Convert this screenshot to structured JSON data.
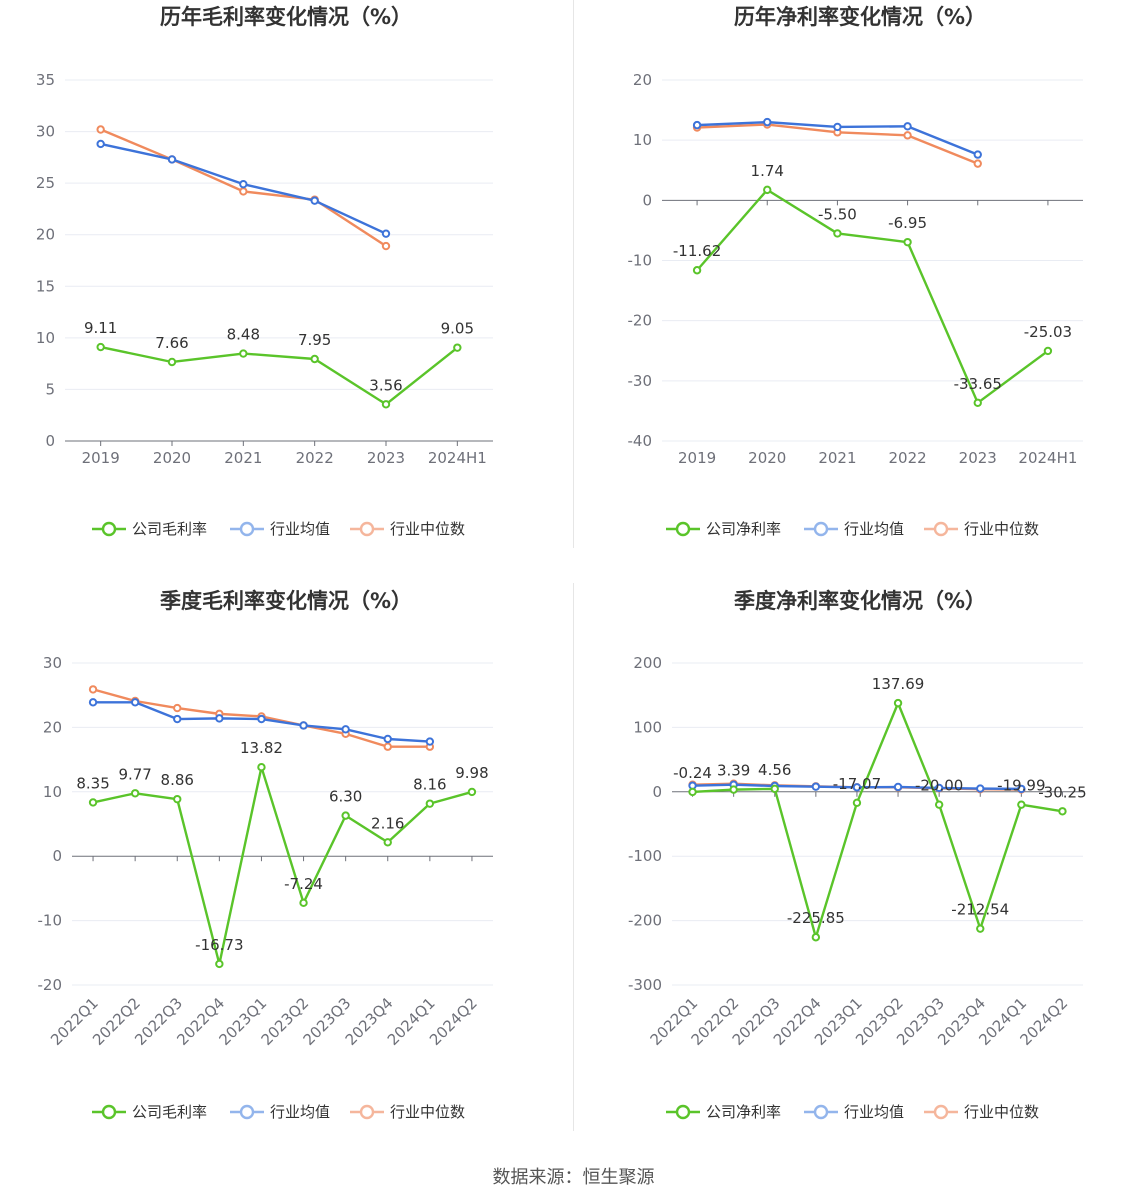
{
  "colors": {
    "company": "#5ac42a",
    "industry_avg": "#3d73d9",
    "industry_median": "#f08a5d",
    "legend_avg": "#93b5ec",
    "legend_median": "#f5b69c",
    "grid": "#e9ecf3",
    "axis": "#6e7079"
  },
  "source": "数据来源：恒生聚源",
  "chart_data": [
    {
      "type": "line",
      "title": "历年毛利率变化情况（%）",
      "categories": [
        "2019",
        "2020",
        "2021",
        "2022",
        "2023",
        "2024H1"
      ],
      "ylim": [
        0,
        35
      ],
      "yticks": [
        0,
        5,
        10,
        15,
        20,
        25,
        30,
        35
      ],
      "rotate_labels": false,
      "label_series": 0,
      "series": [
        {
          "name": "公司毛利率",
          "color_key": "company",
          "values": [
            9.11,
            7.66,
            8.48,
            7.95,
            3.56,
            9.05
          ],
          "labels": [
            "9.11",
            "7.66",
            "8.48",
            "7.95",
            "3.56",
            "9.05"
          ]
        },
        {
          "name": "行业均值",
          "color_key": "industry_avg",
          "values": [
            28.8,
            27.3,
            24.9,
            23.3,
            20.1,
            null
          ]
        },
        {
          "name": "行业中位数",
          "color_key": "industry_median",
          "values": [
            30.2,
            27.3,
            24.2,
            23.4,
            18.9,
            null
          ]
        }
      ]
    },
    {
      "type": "line",
      "title": "历年净利率变化情况（%）",
      "categories": [
        "2019",
        "2020",
        "2021",
        "2022",
        "2023",
        "2024H1"
      ],
      "ylim": [
        -40,
        20
      ],
      "yticks": [
        -40,
        -30,
        -20,
        -10,
        0,
        10,
        20
      ],
      "rotate_labels": false,
      "label_series": 0,
      "series": [
        {
          "name": "公司净利率",
          "color_key": "company",
          "values": [
            -11.62,
            1.74,
            -5.5,
            -6.95,
            -33.65,
            -25.03
          ],
          "labels": [
            "-11.62",
            "1.74",
            "-5.50",
            "-6.95",
            "-33.65",
            "-25.03"
          ]
        },
        {
          "name": "行业均值",
          "color_key": "industry_avg",
          "values": [
            12.5,
            13.0,
            12.2,
            12.3,
            7.6,
            null
          ]
        },
        {
          "name": "行业中位数",
          "color_key": "industry_median",
          "values": [
            12.1,
            12.6,
            11.3,
            10.8,
            6.1,
            null
          ]
        }
      ]
    },
    {
      "type": "line",
      "title": "季度毛利率变化情况（%）",
      "categories": [
        "2022Q1",
        "2022Q2",
        "2022Q3",
        "2022Q4",
        "2023Q1",
        "2023Q2",
        "2023Q3",
        "2023Q4",
        "2024Q1",
        "2024Q2"
      ],
      "ylim": [
        -20,
        30
      ],
      "yticks": [
        -20,
        -10,
        0,
        10,
        20,
        30
      ],
      "rotate_labels": true,
      "label_series": 0,
      "series": [
        {
          "name": "公司毛利率",
          "color_key": "company",
          "values": [
            8.35,
            9.77,
            8.86,
            -16.73,
            13.82,
            -7.24,
            6.3,
            2.16,
            8.16,
            9.98
          ],
          "labels": [
            "8.35",
            "9.77",
            "8.86",
            "-16.73",
            "13.82",
            "-7.24",
            "6.30",
            "2.16",
            "8.16",
            "9.98"
          ]
        },
        {
          "name": "行业均值",
          "color_key": "industry_avg",
          "values": [
            23.9,
            23.9,
            21.3,
            21.4,
            21.3,
            20.3,
            19.7,
            18.2,
            17.8,
            null
          ]
        },
        {
          "name": "行业中位数",
          "color_key": "industry_median",
          "values": [
            25.9,
            24.1,
            23.0,
            22.1,
            21.7,
            20.3,
            19.0,
            17.0,
            17.0,
            null
          ]
        }
      ]
    },
    {
      "type": "line",
      "title": "季度净利率变化情况（%）",
      "categories": [
        "2022Q1",
        "2022Q2",
        "2022Q3",
        "2022Q4",
        "2023Q1",
        "2023Q2",
        "2023Q3",
        "2023Q4",
        "2024Q1",
        "2024Q2"
      ],
      "ylim": [
        -300,
        200
      ],
      "yticks": [
        -300,
        -200,
        -100,
        0,
        100,
        200
      ],
      "rotate_labels": true,
      "label_series": 0,
      "series": [
        {
          "name": "公司净利率",
          "color_key": "company",
          "values": [
            -0.24,
            3.39,
            4.56,
            -225.85,
            -17.07,
            137.69,
            -20.0,
            -212.54,
            -19.99,
            -30.25
          ],
          "labels": [
            "-0.24",
            "3.39",
            "4.56",
            "-225.85",
            "-17.07",
            "137.69",
            "-20.00",
            "-212.54",
            "-19.99",
            "-30.25"
          ]
        },
        {
          "name": "行业均值",
          "color_key": "industry_avg",
          "values": [
            9.5,
            11.0,
            9.0,
            8.0,
            7.0,
            7.5,
            6.0,
            5.0,
            4.5,
            null
          ]
        },
        {
          "name": "行业中位数",
          "color_key": "industry_median",
          "values": [
            11.0,
            12.5,
            10.0,
            8.5,
            7.0,
            7.0,
            5.5,
            4.0,
            3.5,
            null
          ]
        }
      ]
    }
  ]
}
